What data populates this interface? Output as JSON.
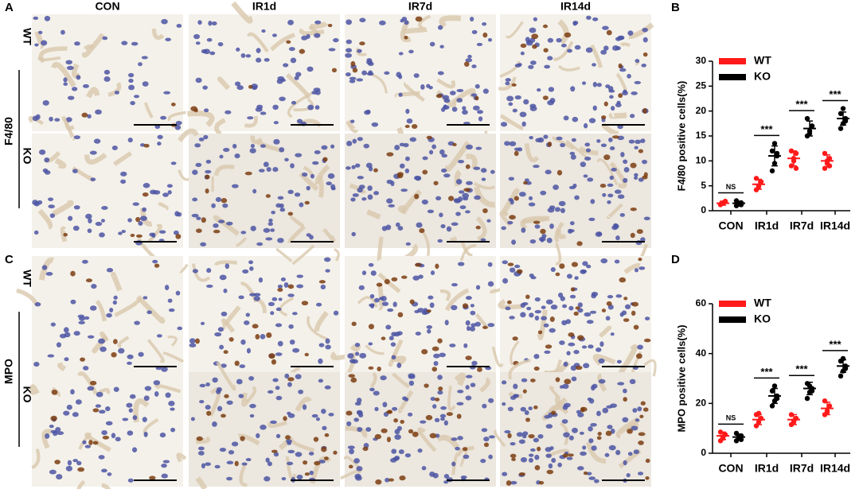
{
  "panel_labels": [
    "A",
    "B",
    "C",
    "D"
  ],
  "columns": [
    "CON",
    "IR1d",
    "IR7d",
    "IR14d"
  ],
  "rows": [
    "WT",
    "KO"
  ],
  "markers": [
    "F4/80",
    "MPO"
  ],
  "chart_data": [
    {
      "type": "dotplot",
      "y_label": "F4/80 positive cells(%)",
      "categories": [
        "CON",
        "IR1d",
        "IR7d",
        "IR14d"
      ],
      "ylim": [
        0,
        30
      ],
      "yticks": [
        0,
        5,
        10,
        15,
        20,
        25,
        30
      ],
      "annotations": [
        "NS",
        "***",
        "***",
        "***"
      ],
      "series": [
        {
          "name": "WT",
          "color": "#ff1a1a",
          "values": [
            1.5,
            5.3,
            10.5,
            10
          ],
          "errors": [
            0.4,
            1.0,
            1.5,
            1.2
          ],
          "points": [
            [
              1.2,
              1.5,
              1.8,
              1.3,
              1.6,
              1.9
            ],
            [
              4.2,
              5,
              5.8,
              6.5,
              4.8
            ],
            [
              9,
              10,
              11.5,
              12,
              10.5,
              8.5
            ],
            [
              8.5,
              9.5,
              10.5,
              11.5,
              10,
              9
            ]
          ]
        },
        {
          "name": "KO",
          "color": "#000000",
          "values": [
            1.5,
            11,
            16.5,
            18.5
          ],
          "errors": [
            0.4,
            2,
            1.5,
            1.3
          ],
          "points": [
            [
              1.0,
              1.3,
              1.6,
              2.0,
              1.5,
              1.2
            ],
            [
              8,
              9.5,
              11,
              12,
              13.5,
              11.5
            ],
            [
              15,
              16,
              17,
              18.5,
              15.5,
              17
            ],
            [
              16.5,
              17.5,
              18.5,
              19.5,
              20.5,
              18
            ]
          ]
        }
      ]
    },
    {
      "type": "dotplot",
      "y_label": "MPO positive cells(%)",
      "categories": [
        "CON",
        "IR1d",
        "IR7d",
        "IR14d"
      ],
      "ylim": [
        0,
        60
      ],
      "yticks": [
        0,
        20,
        40,
        60
      ],
      "annotations": [
        "NS",
        "***",
        "***",
        "***"
      ],
      "series": [
        {
          "name": "WT",
          "color": "#ff1a1a",
          "values": [
            7,
            13.5,
            13.5,
            18
          ],
          "errors": [
            1.5,
            2,
            2,
            2.5
          ],
          "points": [
            [
              5,
              6.5,
              7.5,
              8.5,
              6
            ],
            [
              11,
              12.5,
              14,
              15.5,
              16
            ],
            [
              11.5,
              12.5,
              14,
              15.5,
              13
            ],
            [
              15.5,
              17,
              19,
              21,
              16.5
            ]
          ]
        },
        {
          "name": "KO",
          "color": "#000000",
          "values": [
            6.5,
            23,
            26,
            35
          ],
          "errors": [
            1.2,
            3,
            2.5,
            2.5
          ],
          "points": [
            [
              5,
              6,
              7,
              8,
              6.5,
              5.5
            ],
            [
              19,
              21,
              23,
              25,
              27,
              22
            ],
            [
              22,
              24.5,
              26,
              28,
              27,
              25
            ],
            [
              31,
              33,
              35,
              37,
              38,
              34
            ]
          ]
        }
      ]
    }
  ]
}
